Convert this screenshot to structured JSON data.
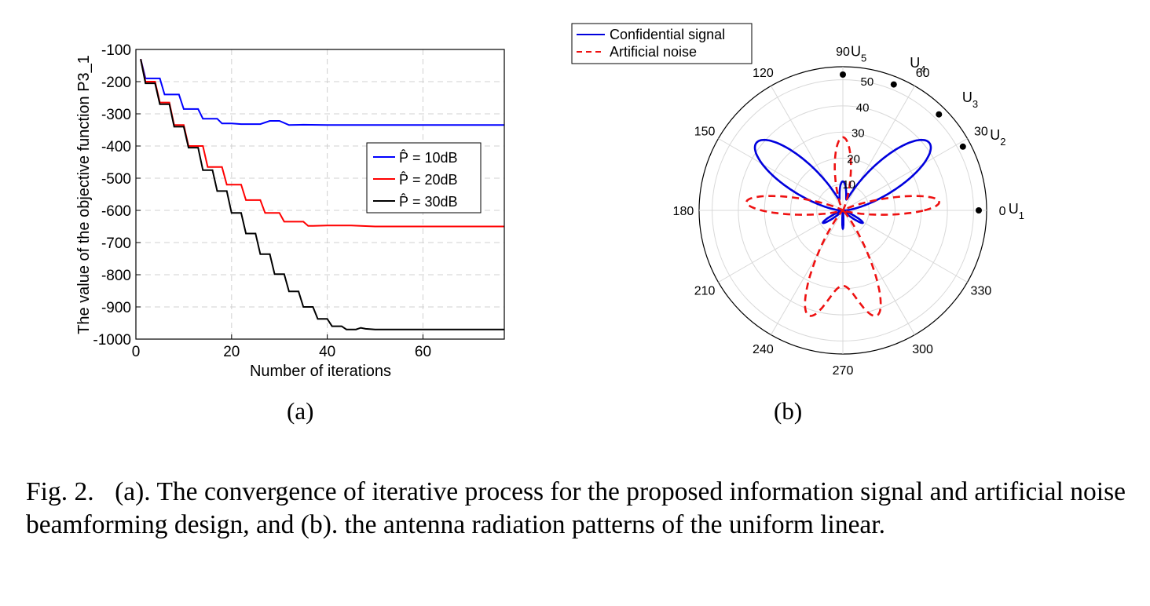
{
  "chart_data": [
    {
      "type": "line",
      "panel_label": "(a)",
      "xlabel": "Number of iterations",
      "ylabel": "The value of the objective function P3_1",
      "xlim": [
        0,
        77
      ],
      "ylim": [
        -1000,
        -100
      ],
      "xticks": [
        "0",
        "20",
        "40",
        "60"
      ],
      "yticks": [
        "-100",
        "-200",
        "-300",
        "-400",
        "-500",
        "-600",
        "-700",
        "-800",
        "-900",
        "-1000"
      ],
      "grid": true,
      "legend_position": "middle-right",
      "series": [
        {
          "name": "P̂ = 10dB",
          "color": "#0000ff",
          "x": [
            1,
            2,
            3,
            4,
            5,
            6,
            7,
            8,
            9,
            10,
            11,
            12,
            13,
            14,
            15,
            16,
            17,
            18,
            20,
            22,
            24,
            26,
            28,
            30,
            32,
            35,
            40,
            50,
            60,
            77
          ],
          "y": [
            -130,
            -190,
            -190,
            -190,
            -190,
            -240,
            -240,
            -240,
            -240,
            -285,
            -285,
            -285,
            -285,
            -315,
            -315,
            -315,
            -315,
            -330,
            -330,
            -332,
            -332,
            -332,
            -322,
            -322,
            -335,
            -334,
            -335,
            -335,
            -335,
            -335
          ]
        },
        {
          "name": "P̂ = 20dB",
          "color": "#ff0000",
          "x": [
            1,
            2,
            3,
            4,
            5,
            6,
            7,
            8,
            9,
            10,
            11,
            12,
            13,
            14,
            15,
            16,
            17,
            18,
            19,
            20,
            21,
            22,
            23,
            24,
            25,
            26,
            27,
            28,
            29,
            30,
            31,
            32,
            33,
            34,
            35,
            36,
            37,
            40,
            45,
            50,
            60,
            77
          ],
          "y": [
            -130,
            -200,
            -200,
            -200,
            -265,
            -265,
            -265,
            -335,
            -335,
            -335,
            -400,
            -400,
            -400,
            -400,
            -465,
            -465,
            -465,
            -465,
            -520,
            -520,
            -520,
            -520,
            -568,
            -568,
            -568,
            -568,
            -608,
            -608,
            -608,
            -608,
            -635,
            -635,
            -635,
            -635,
            -635,
            -648,
            -648,
            -647,
            -647,
            -650,
            -650,
            -650
          ]
        },
        {
          "name": "P̂ = 30dB",
          "color": "#000000",
          "x": [
            1,
            2,
            3,
            4,
            5,
            6,
            7,
            8,
            9,
            10,
            11,
            12,
            13,
            14,
            15,
            16,
            17,
            18,
            19,
            20,
            21,
            22,
            23,
            24,
            25,
            26,
            27,
            28,
            29,
            30,
            31,
            32,
            33,
            34,
            35,
            36,
            37,
            38,
            39,
            40,
            41,
            42,
            43,
            44,
            45,
            46,
            47,
            48,
            50,
            55,
            60,
            77
          ],
          "y": [
            -130,
            -205,
            -205,
            -205,
            -270,
            -270,
            -270,
            -340,
            -340,
            -340,
            -405,
            -405,
            -405,
            -475,
            -475,
            -475,
            -540,
            -540,
            -540,
            -608,
            -608,
            -608,
            -672,
            -672,
            -672,
            -736,
            -736,
            -736,
            -798,
            -798,
            -798,
            -852,
            -852,
            -852,
            -900,
            -900,
            -900,
            -937,
            -937,
            -937,
            -960,
            -960,
            -960,
            -970,
            -970,
            -970,
            -965,
            -968,
            -970,
            -970,
            -970,
            -970
          ]
        }
      ]
    },
    {
      "type": "polar",
      "panel_label": "(b)",
      "angle_ticks": [
        "0",
        "30",
        "60",
        "90",
        "120",
        "150",
        "180",
        "210",
        "240",
        "270",
        "300",
        "330"
      ],
      "radial_ticks": [
        "10",
        "20",
        "30",
        "40",
        "50"
      ],
      "rlim": [
        0,
        55
      ],
      "grid": true,
      "legend_position": "top-left",
      "series": [
        {
          "name": "Confidential signal",
          "color": "#0000dd",
          "style": "solid",
          "lobes": [
            {
              "center_deg": 38,
              "peak": 42,
              "width_deg": 28
            },
            {
              "center_deg": 142,
              "peak": 42,
              "width_deg": 28
            },
            {
              "center_deg": 90,
              "peak": 11,
              "width_deg": 20
            },
            {
              "center_deg": 212,
              "peak": 9,
              "width_deg": 12
            },
            {
              "center_deg": 270,
              "peak": 7,
              "width_deg": 6
            },
            {
              "center_deg": 328,
              "peak": 9,
              "width_deg": 12
            }
          ]
        },
        {
          "name": "Artificial noise",
          "color": "#ee1111",
          "style": "dashed",
          "lobes": [
            {
              "center_deg": 90,
              "peak": 28,
              "width_deg": 21
            },
            {
              "center_deg": 5,
              "peak": 37,
              "width_deg": 17
            },
            {
              "center_deg": 175,
              "peak": 37,
              "width_deg": 17
            },
            {
              "center_deg": 250,
              "peak": 31,
              "width_deg": 17
            },
            {
              "center_deg": 290,
              "peak": 31,
              "width_deg": 17
            },
            {
              "center_deg": 270,
              "peak": 25,
              "width_deg": 30
            }
          ]
        }
      ],
      "markers": [
        {
          "label": "U",
          "sub": "1",
          "angle_deg": 0,
          "r": 52
        },
        {
          "label": "U",
          "sub": "2",
          "angle_deg": 28,
          "r": 52
        },
        {
          "label": "U",
          "sub": "3",
          "angle_deg": 45,
          "r": 52
        },
        {
          "label": "U",
          "sub": "4",
          "angle_deg": 68,
          "r": 52
        },
        {
          "label": "U",
          "sub": "5",
          "angle_deg": 90,
          "r": 52
        }
      ]
    }
  ],
  "caption": {
    "lead": "Fig. 2.",
    "text": "(a). The convergence of iterative process for the proposed information signal and artificial noise beamforming design, and (b). the antenna radiation patterns of the uniform linear."
  }
}
